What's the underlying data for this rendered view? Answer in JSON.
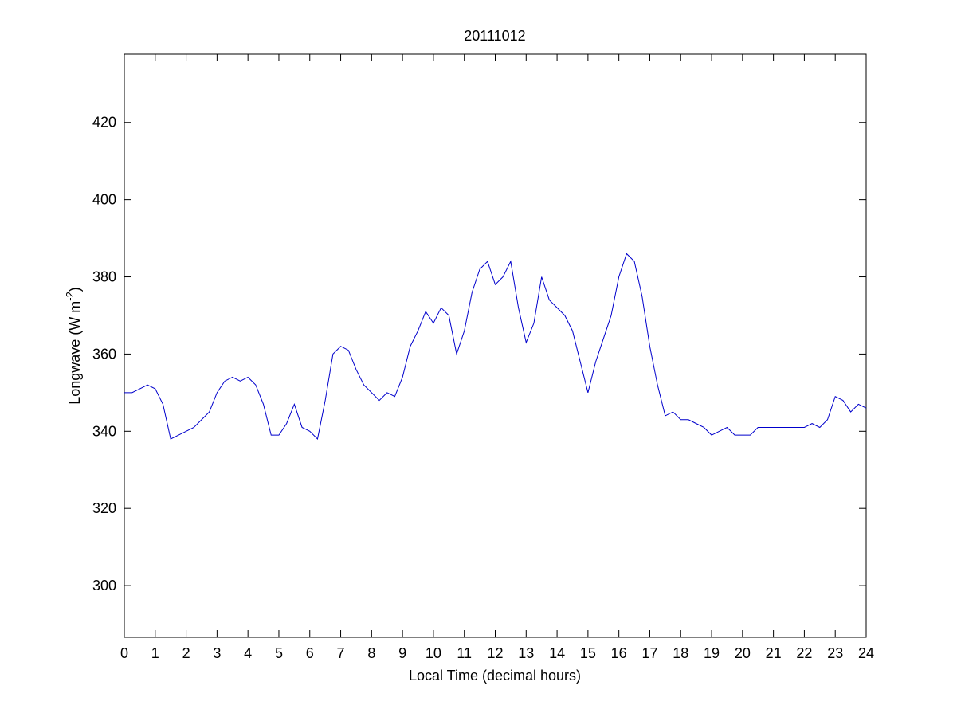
{
  "chart_data": {
    "type": "line",
    "title": "20111012",
    "xlabel": "Local Time (decimal hours)",
    "ylabel": {
      "text": "Longwave (W m",
      "superscript": "-2",
      "suffix": ")"
    },
    "x": [
      0,
      0.25,
      0.5,
      0.75,
      1,
      1.25,
      1.5,
      1.75,
      2,
      2.25,
      2.5,
      2.75,
      3,
      3.25,
      3.5,
      3.75,
      4,
      4.25,
      4.5,
      4.75,
      5,
      5.25,
      5.5,
      5.75,
      6,
      6.25,
      6.5,
      6.75,
      7,
      7.25,
      7.5,
      7.75,
      8,
      8.25,
      8.5,
      8.75,
      9,
      9.25,
      9.5,
      9.75,
      10,
      10.25,
      10.5,
      10.75,
      11,
      11.25,
      11.5,
      11.75,
      12,
      12.25,
      12.5,
      12.75,
      13,
      13.25,
      13.5,
      13.75,
      14,
      14.25,
      14.5,
      14.75,
      15,
      15.25,
      15.5,
      15.75,
      16,
      16.25,
      16.5,
      16.75,
      17,
      17.25,
      17.5,
      17.75,
      18,
      18.25,
      18.5,
      18.75,
      19,
      19.25,
      19.5,
      19.75,
      20,
      20.25,
      20.5,
      20.75,
      21,
      21.25,
      21.5,
      21.75,
      22,
      22.25,
      22.5,
      22.75,
      23,
      23.25,
      23.5,
      23.75,
      24
    ],
    "series": [
      {
        "name": "Longwave",
        "color": "#0000cc",
        "values": [
          350,
          350,
          351,
          352,
          351,
          347,
          338,
          339,
          340,
          341,
          343,
          345,
          350,
          353,
          354,
          353,
          354,
          352,
          347,
          339,
          339,
          342,
          347,
          341,
          340,
          338,
          348,
          360,
          362,
          361,
          356,
          352,
          350,
          348,
          350,
          349,
          354,
          362,
          366,
          371,
          368,
          372,
          370,
          360,
          366,
          376,
          382,
          384,
          378,
          380,
          384,
          372,
          363,
          368,
          380,
          374,
          372,
          370,
          366,
          358,
          350,
          358,
          364,
          370,
          380,
          386,
          384,
          375,
          362,
          352,
          344,
          345,
          343,
          343,
          342,
          341,
          339,
          340,
          341,
          339,
          339,
          339,
          341,
          341,
          341,
          341,
          341,
          341,
          341,
          342,
          341,
          343,
          349,
          348,
          345,
          347,
          346
        ]
      }
    ],
    "xlim": [
      0,
      24
    ],
    "ylim": [
      286.6,
      437.7
    ],
    "xticks": [
      0,
      1,
      2,
      3,
      4,
      5,
      6,
      7,
      8,
      9,
      10,
      11,
      12,
      13,
      14,
      15,
      16,
      17,
      18,
      19,
      20,
      21,
      22,
      23,
      24
    ],
    "yticks": [
      300,
      320,
      340,
      360,
      380,
      400,
      420
    ]
  }
}
